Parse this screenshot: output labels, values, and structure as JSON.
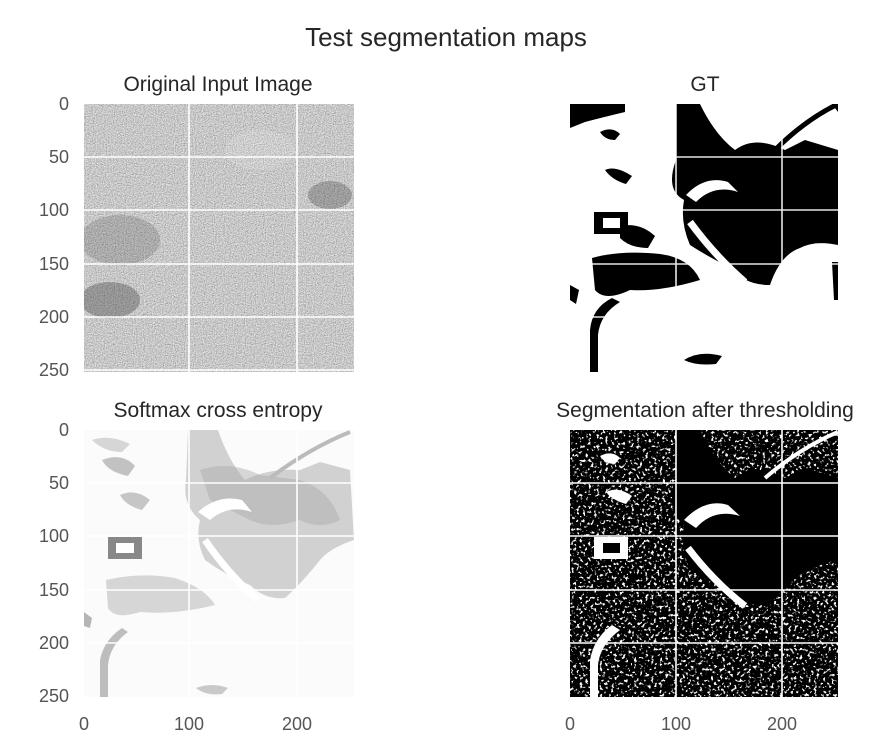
{
  "figure_title": "Test segmentation maps",
  "chart_data": [
    {
      "type": "heatmap",
      "title": "Original Input Image",
      "colormap": "gray",
      "content": "grainy gray stone-like texture",
      "yticks": [
        "0",
        "50",
        "100",
        "150",
        "200",
        "250"
      ],
      "xticks": [],
      "grid": true
    },
    {
      "type": "heatmap",
      "title": "GT",
      "colormap": "binary",
      "content": "binary mask with black blob regions on white",
      "yticks": [],
      "xticks": [],
      "grid": true
    },
    {
      "type": "heatmap",
      "title": "Softmax cross entropy",
      "colormap": "gray",
      "content": "mostly white with soft gray blob regions",
      "yticks": [
        "0",
        "50",
        "100",
        "150",
        "200",
        "250"
      ],
      "xticks": [
        "0",
        "100",
        "200"
      ],
      "grid": true
    },
    {
      "type": "heatmap",
      "title": "Segmentation after thresholding",
      "colormap": "binary",
      "content": "mostly black with scattered white speckles and a white curved band",
      "yticks": [],
      "xticks": [
        "0",
        "100",
        "200"
      ],
      "grid": true
    }
  ],
  "colors": {
    "black": "#000000",
    "white": "#ffffff",
    "grid": "#ffffff",
    "text": "#262626",
    "tick": "#555555"
  }
}
